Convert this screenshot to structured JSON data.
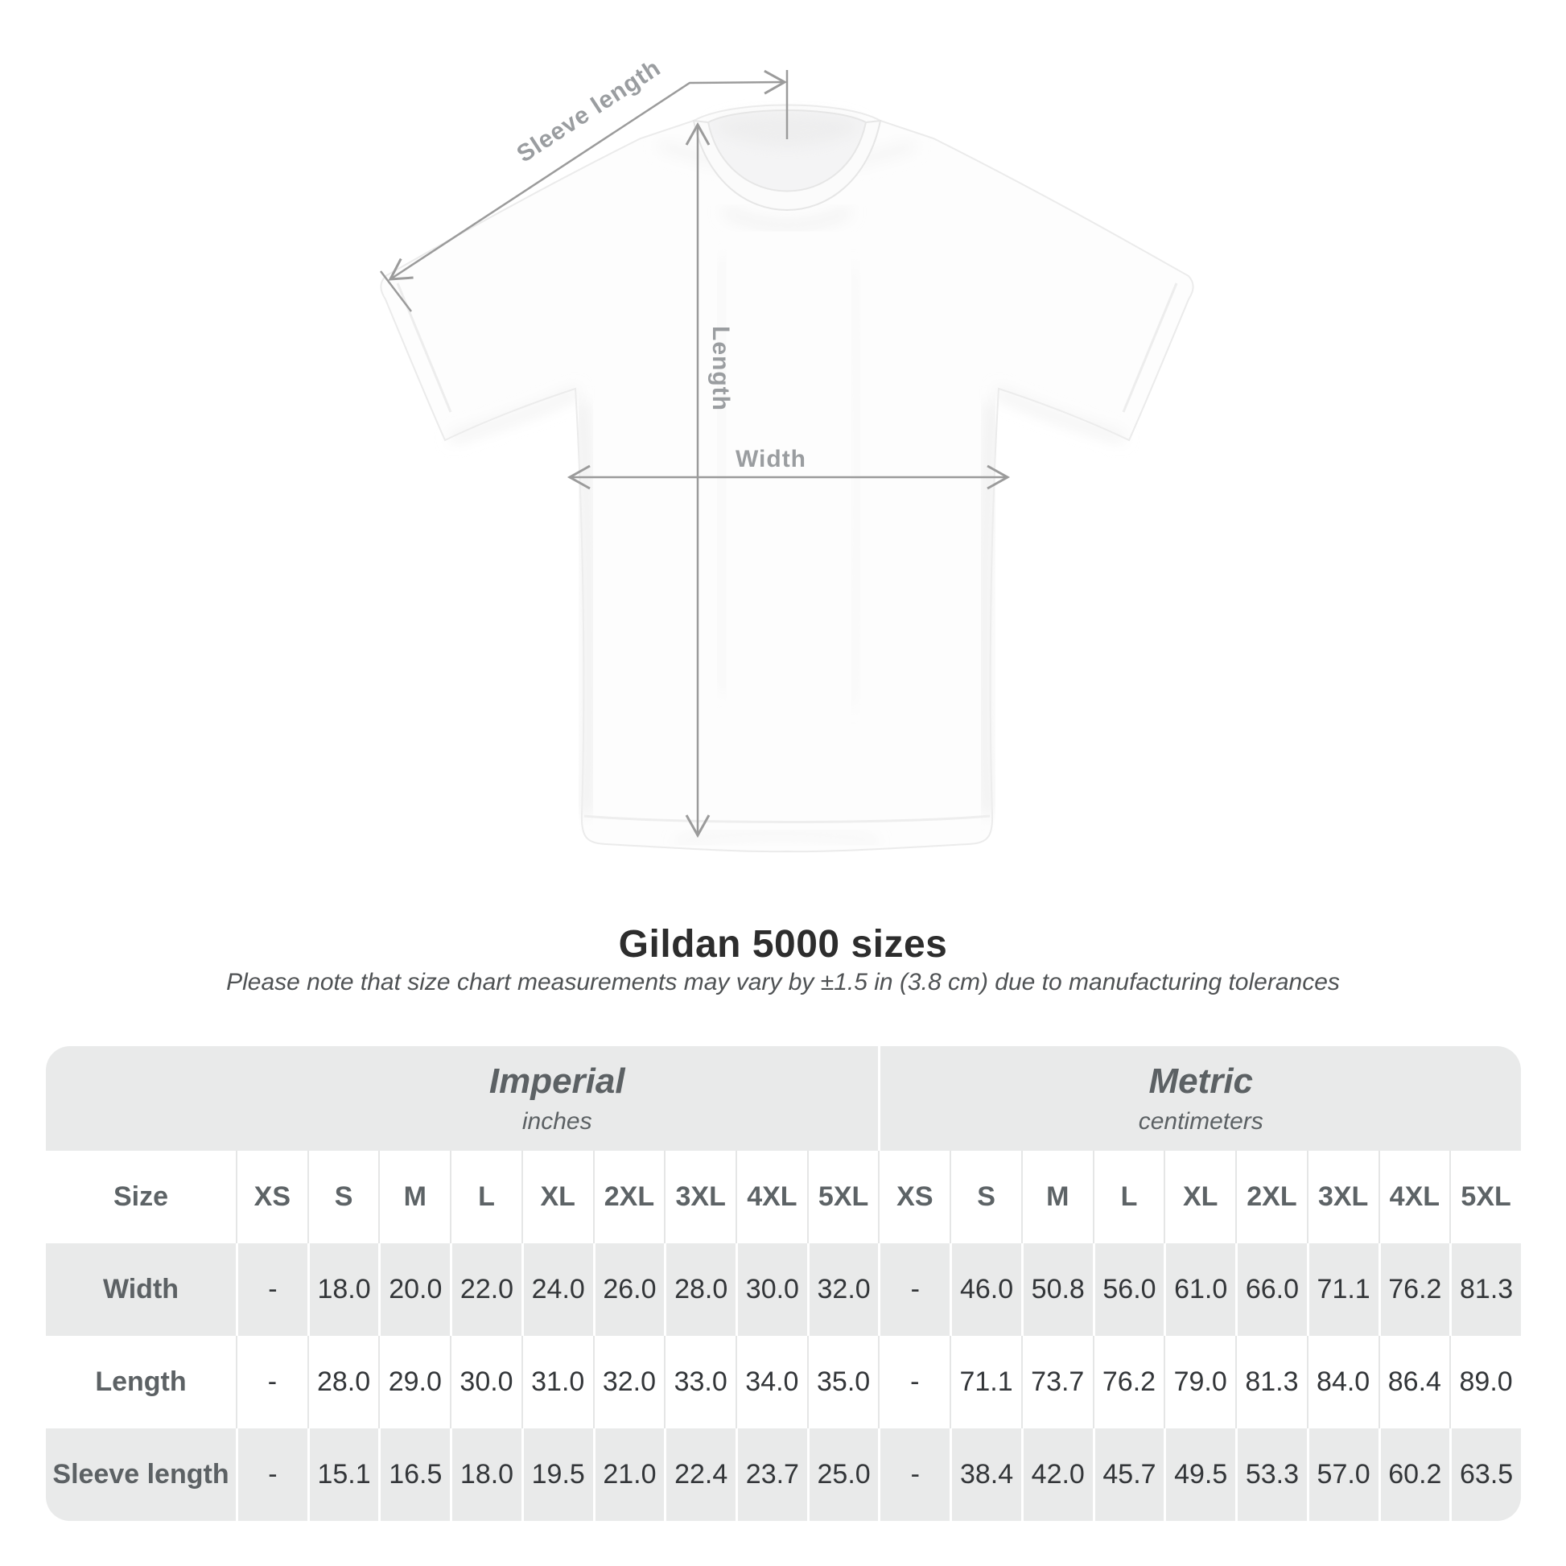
{
  "title": "Gildan 5000 sizes",
  "note": "Please note that size chart measurements may vary by ±1.5 in (3.8 cm) due to manufacturing tolerances",
  "diagram": {
    "sleeve_length_label": "Sleeve length",
    "length_label": "Length",
    "width_label": "Width"
  },
  "colors": {
    "annotation_line": "#9b9b9b",
    "annotation_text": "#9a9da0",
    "table_band_gray": "#e9eaea",
    "heading_text": "#5c6164",
    "value_text": "#333639",
    "title_text": "#2d2d2d",
    "note_text": "#4f5254"
  },
  "chart_data": {
    "type": "table",
    "title": "Gildan 5000 sizes",
    "note": "Please note that size chart measurements may vary by ±1.5 in (3.8 cm) due to manufacturing tolerances",
    "size_header": "Size",
    "sizes": [
      "XS",
      "S",
      "M",
      "L",
      "XL",
      "2XL",
      "3XL",
      "4XL",
      "5XL"
    ],
    "groups": [
      {
        "label": "Imperial",
        "unit": "inches"
      },
      {
        "label": "Metric",
        "unit": "centimeters"
      }
    ],
    "rows": [
      {
        "label": "Width",
        "imperial": [
          "-",
          "18.0",
          "20.0",
          "22.0",
          "24.0",
          "26.0",
          "28.0",
          "30.0",
          "32.0"
        ],
        "metric": [
          "-",
          "46.0",
          "50.8",
          "56.0",
          "61.0",
          "66.0",
          "71.1",
          "76.2",
          "81.3"
        ]
      },
      {
        "label": "Length",
        "imperial": [
          "-",
          "28.0",
          "29.0",
          "30.0",
          "31.0",
          "32.0",
          "33.0",
          "34.0",
          "35.0"
        ],
        "metric": [
          "-",
          "71.1",
          "73.7",
          "76.2",
          "79.0",
          "81.3",
          "84.0",
          "86.4",
          "89.0"
        ]
      },
      {
        "label": "Sleeve length",
        "imperial": [
          "-",
          "15.1",
          "16.5",
          "18.0",
          "19.5",
          "21.0",
          "22.4",
          "23.7",
          "25.0"
        ],
        "metric": [
          "-",
          "38.4",
          "42.0",
          "45.7",
          "49.5",
          "53.3",
          "57.0",
          "60.2",
          "63.5"
        ]
      }
    ]
  }
}
